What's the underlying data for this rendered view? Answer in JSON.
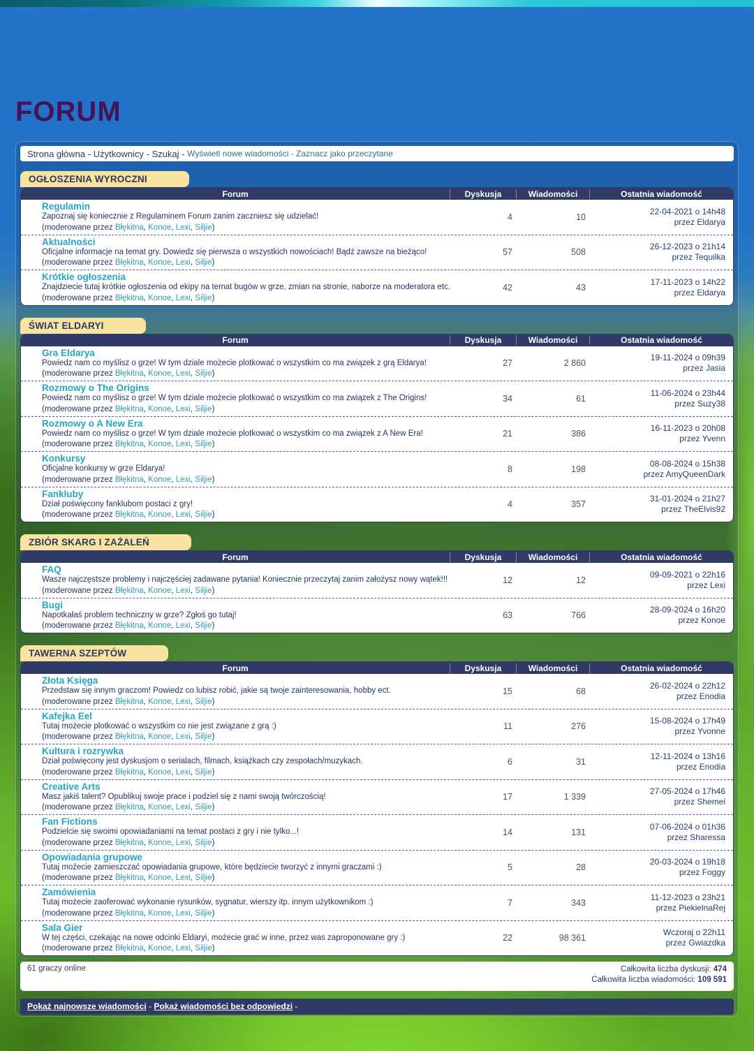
{
  "title": "FORUM",
  "breadcrumb": {
    "primary_links": [
      "Strona główna",
      "Użytkownicy",
      "Szukaj"
    ],
    "secondary_links": [
      "Wyświetl nowe wiadomości",
      "Zaznacz jako przeczytane"
    ],
    "separator": "-"
  },
  "labels": {
    "moderated_prefix": "(moderowane przez",
    "moderated_suffix": ")",
    "by": "przez"
  },
  "moderators": [
    "Błękitna",
    "Konoe",
    "Lexi",
    "Siljie"
  ],
  "table_headers": [
    "Forum",
    "Dyskusja",
    "Wiadomości",
    "Ostatnia wiadomość"
  ],
  "sections": [
    {
      "name": "OGŁOSZENIA WYROCZNI",
      "rows": [
        {
          "title": "Regulamin",
          "description": "Zapoznaj się koniecznie z Regulaminem Forum zanim zaczniesz się udzielać!",
          "discussions": "4",
          "messages": "10",
          "last_date": "22-04-2021 o 14h48",
          "last_by": "Eldarya"
        },
        {
          "title": "Aktualności",
          "description": "Oficjalne informacje na temat gry. Dowiedz się pierwsza o wszystkich nowościach! Bądź zawsze na bieżąco!",
          "discussions": "57",
          "messages": "508",
          "last_date": "26-12-2023 o 21h14",
          "last_by": "Tequilka"
        },
        {
          "title": "Krótkie ogłoszenia",
          "description": "Znajdziecie tutaj krótkie ogłoszenia od ekipy na temat bugów w grze, zmian na stronie, naborze na moderatora etc.",
          "discussions": "42",
          "messages": "43",
          "last_date": "17-11-2023 o 14h22",
          "last_by": "Eldarya"
        }
      ]
    },
    {
      "name": "ŚWIAT ELDARYI",
      "rows": [
        {
          "title": "Gra Eldarya",
          "description": "Powiedz nam co myślisz o grze! W tym dziale możecie plotkować o wszystkim co ma związek z grą Eldarya!",
          "discussions": "27",
          "messages": "2 860",
          "last_date": "19-11-2024 o 09h39",
          "last_by": "Jasia"
        },
        {
          "title": "Rozmowy o The Origins",
          "description": "Powiedz nam co myślisz o grze! W tym dziale możecie plotkować o wszystkim co ma związek z The Origins!",
          "discussions": "34",
          "messages": "61",
          "last_date": "11-06-2024 o 23h44",
          "last_by": "Suzy38"
        },
        {
          "title": "Rozmowy o A New Era",
          "description": "Powiedz nam co myślisz o grze! W tym dziale możecie plotkować o wszystkim co ma związek z A New Era!",
          "discussions": "21",
          "messages": "386",
          "last_date": "16-11-2023 o 20h08",
          "last_by": "Yvenn"
        },
        {
          "title": "Konkursy",
          "description": "Oficjalne konkursy w grze Eldarya!",
          "discussions": "8",
          "messages": "198",
          "last_date": "08-08-2024 o 15h38",
          "last_by": "AmyQueenDark"
        },
        {
          "title": "Fankluby",
          "description": "Dział poświęcony fanklubom postaci z gry!",
          "discussions": "4",
          "messages": "357",
          "last_date": "31-01-2024 o 21h27",
          "last_by": "TheElvis92"
        }
      ]
    },
    {
      "name": "ZBIÓR SKARG I ZAŻALEŃ",
      "rows": [
        {
          "title": "FAQ",
          "description": "Wasze najczęstsze problemy i najczęściej zadawane pytania! Koniecznie przeczytaj zanim założysz nowy wątek!!!",
          "discussions": "12",
          "messages": "12",
          "last_date": "09-09-2021 o 22h16",
          "last_by": "Lexi"
        },
        {
          "title": "Bugi",
          "description": "Napotkałaś problem techniczny w grze? Zgłoś go tutaj!",
          "discussions": "63",
          "messages": "766",
          "last_date": "28-09-2024 o 16h20",
          "last_by": "Konoe"
        }
      ]
    },
    {
      "name": "TAWERNA SZEPTÓW",
      "rows": [
        {
          "title": "Złota Księga",
          "description": "Przedstaw się innym graczom! Powiedz co lubisz robić, jakie są twoje zainteresowania, hobby ect.",
          "discussions": "15",
          "messages": "68",
          "last_date": "26-02-2024 o 22h12",
          "last_by": "Enodia"
        },
        {
          "title": "Kafejka Eel",
          "description": "Tutaj możecie plotkować o wszystkim co nie jest związane z grą :)",
          "discussions": "11",
          "messages": "276",
          "last_date": "15-08-2024 o 17h49",
          "last_by": "Yvonne"
        },
        {
          "title": "Kultura i rozrywka",
          "description": "Dział poświęcony jest dyskusjom o serialach, filmach, książkach czy zespołach/muzykach.",
          "discussions": "6",
          "messages": "31",
          "last_date": "12-11-2024 o 13h16",
          "last_by": "Enodia"
        },
        {
          "title": "Creative Arts",
          "description": "Masz jakiś talent? Opublikuj swoje prace i podziel się z nami swoją twórczością!",
          "discussions": "17",
          "messages": "1 339",
          "last_date": "27-05-2024 o 17h46",
          "last_by": "Shemei"
        },
        {
          "title": "Fan Fictions",
          "description": "Podzielcie się swoimi opowiadaniami na temat postaci z gry i nie tylko...!",
          "discussions": "14",
          "messages": "131",
          "last_date": "07-06-2024 o 01h36",
          "last_by": "Sharessa"
        },
        {
          "title": "Opowiadania grupowe",
          "description": "Tutaj możecie zamieszczać opowiadania grupowe, które będziecie tworzyć z innymi graczami :)",
          "discussions": "5",
          "messages": "28",
          "last_date": "20-03-2024 o 19h18",
          "last_by": "Foggy"
        },
        {
          "title": "Zamówienia",
          "description": "Tutaj możecie zaoferować wykonanie rysunków, sygnatur, wierszy itp. innym użytkownikom :)",
          "discussions": "7",
          "messages": "343",
          "last_date": "11-12-2023 o 23h21",
          "last_by": "PiekielnaRej"
        },
        {
          "title": "Sala Gier",
          "description": "W tej części, czekając na nowe odcinki Eldaryi, możecie grać w inne, przez was zaproponowane gry :)",
          "discussions": "22",
          "messages": "98 361",
          "last_date": "Wczoraj o 22h11",
          "last_by": "Gwiazdka"
        }
      ]
    }
  ],
  "footer": {
    "online": "61 graczy online",
    "totals": [
      {
        "label": "Całkowita liczba dyskusji:",
        "value": "474"
      },
      {
        "label": "Całkowita liczba wiadomości:",
        "value": "109 591"
      }
    ]
  },
  "bottom_links": [
    "Pokaż najnowsze wiadomości",
    "Pokaż wiadomości bez odpowiedzi"
  ],
  "colors": {
    "accent_teal": "#25a7c3",
    "navy_header": "#303a66",
    "tab_yellow": "#f8e3a0",
    "title_purple": "#451457"
  }
}
